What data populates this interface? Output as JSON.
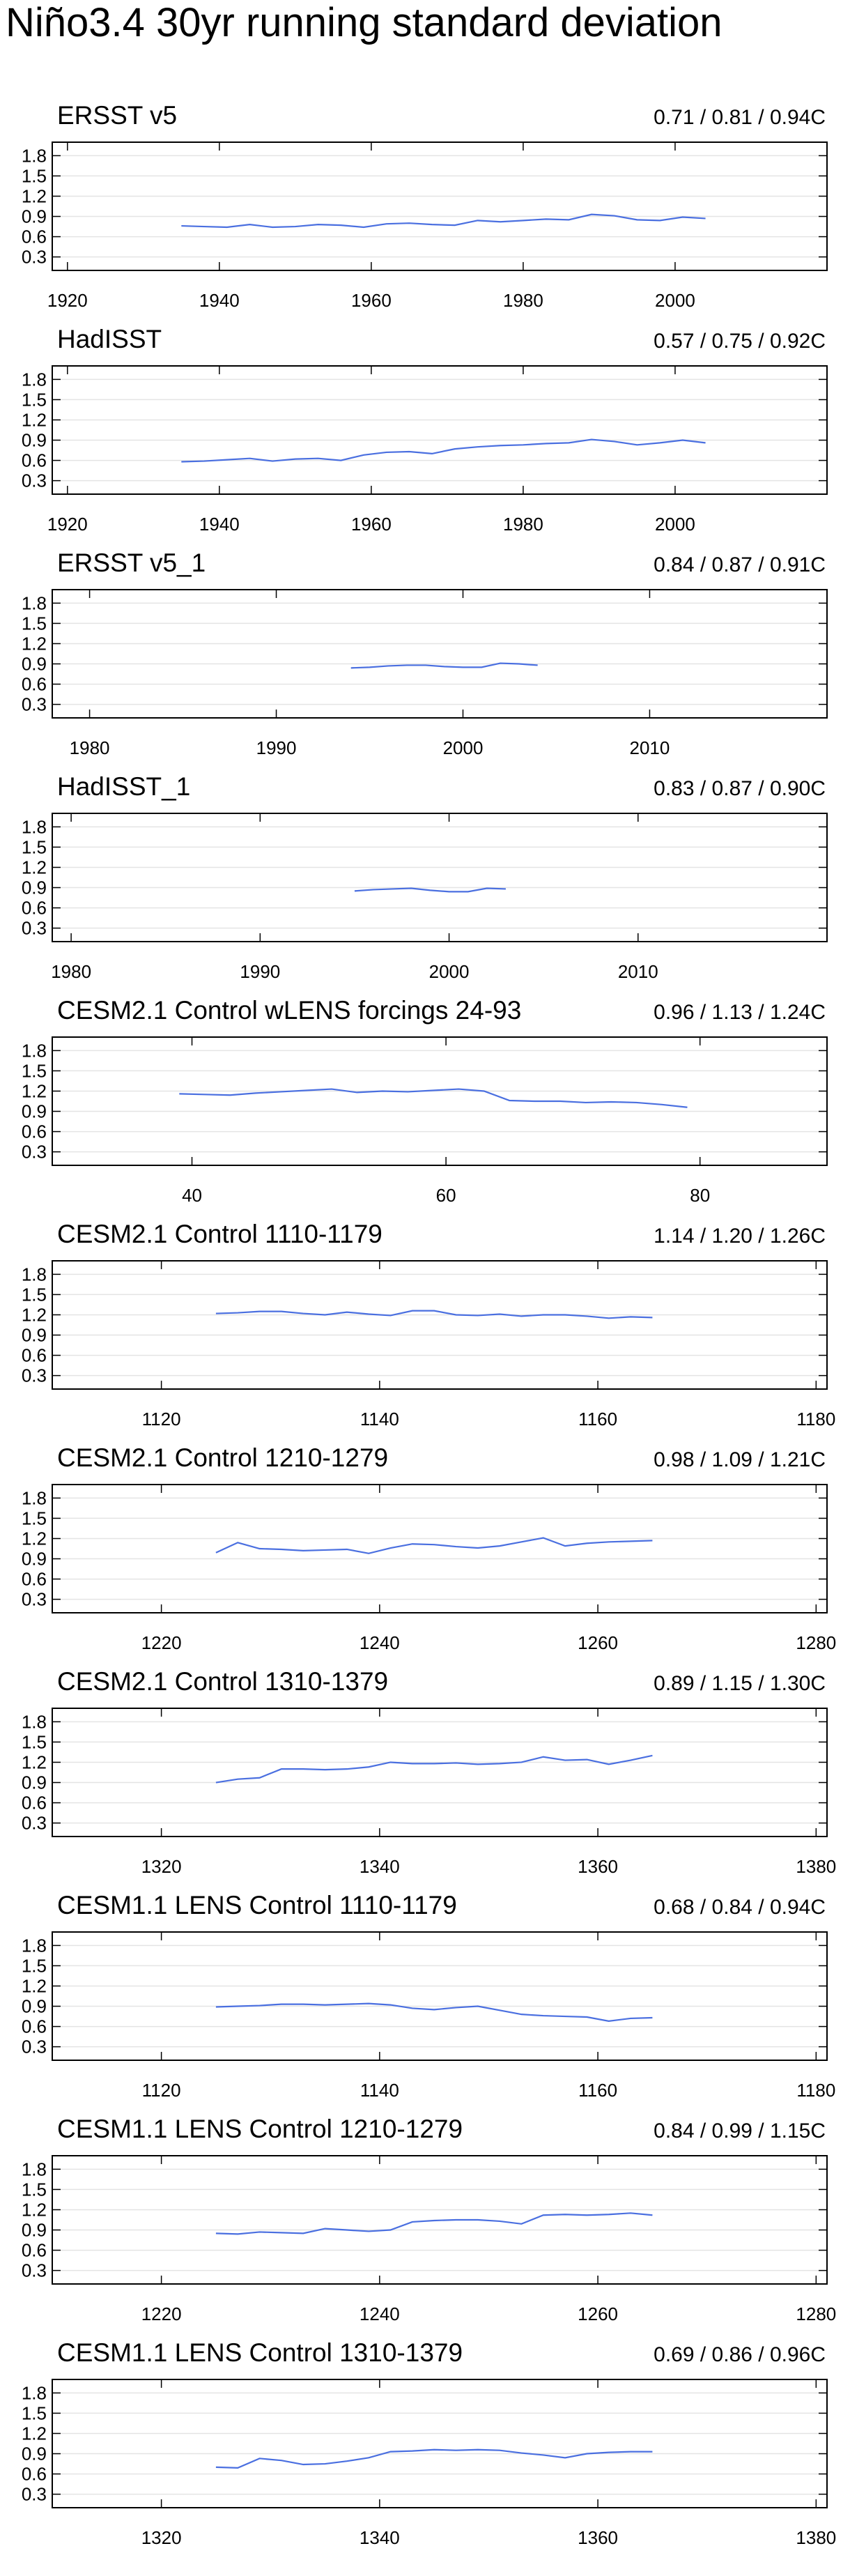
{
  "title": "Niño3.4 30yr running standard deviation",
  "chart_data": [
    {
      "type": "line",
      "title": "ERSST v5",
      "subtitle": "0.71 / 0.81 / 0.94C",
      "color": "#4a6fe0",
      "grid": true,
      "x": [
        1935,
        1938,
        1941,
        1944,
        1947,
        1950,
        1953,
        1956,
        1959,
        1962,
        1965,
        1968,
        1971,
        1974,
        1977,
        1980,
        1983,
        1986,
        1989,
        1992,
        1995,
        1998,
        2001,
        2004
      ],
      "values": [
        0.76,
        0.75,
        0.74,
        0.78,
        0.74,
        0.75,
        0.78,
        0.77,
        0.74,
        0.79,
        0.8,
        0.78,
        0.77,
        0.84,
        0.82,
        0.84,
        0.86,
        0.85,
        0.93,
        0.91,
        0.85,
        0.84,
        0.89,
        0.87
      ],
      "xlim": [
        1918,
        2020
      ],
      "xticks": [
        1920,
        1940,
        1960,
        1980,
        2000
      ],
      "ylim": [
        0.1,
        2.0
      ],
      "yticks": [
        0.3,
        0.6,
        0.9,
        1.2,
        1.5,
        1.8
      ]
    },
    {
      "type": "line",
      "title": "HadISST",
      "subtitle": "0.57 / 0.75 / 0.92C",
      "color": "#4a6fe0",
      "grid": true,
      "x": [
        1935,
        1938,
        1941,
        1944,
        1947,
        1950,
        1953,
        1956,
        1959,
        1962,
        1965,
        1968,
        1971,
        1974,
        1977,
        1980,
        1983,
        1986,
        1989,
        1992,
        1995,
        1998,
        2001,
        2004
      ],
      "values": [
        0.58,
        0.59,
        0.61,
        0.63,
        0.59,
        0.62,
        0.63,
        0.6,
        0.68,
        0.72,
        0.73,
        0.7,
        0.77,
        0.8,
        0.82,
        0.83,
        0.85,
        0.86,
        0.91,
        0.88,
        0.83,
        0.86,
        0.9,
        0.86
      ],
      "xlim": [
        1918,
        2020
      ],
      "xticks": [
        1920,
        1940,
        1960,
        1980,
        2000
      ],
      "ylim": [
        0.1,
        2.0
      ],
      "yticks": [
        0.3,
        0.6,
        0.9,
        1.2,
        1.5,
        1.8
      ]
    },
    {
      "type": "line",
      "title": "ERSST v5_1",
      "subtitle": "0.84 / 0.87 / 0.91C",
      "color": "#4a6fe0",
      "grid": true,
      "x": [
        1994,
        1995,
        1996,
        1997,
        1998,
        1999,
        2000,
        2001,
        2002,
        2003,
        2004
      ],
      "values": [
        0.84,
        0.85,
        0.87,
        0.88,
        0.88,
        0.86,
        0.85,
        0.85,
        0.91,
        0.9,
        0.88
      ],
      "xlim": [
        1978,
        2019.5
      ],
      "xticks": [
        1980,
        1990,
        2000,
        2010
      ],
      "ylim": [
        0.1,
        2.0
      ],
      "yticks": [
        0.3,
        0.6,
        0.9,
        1.2,
        1.5,
        1.8
      ]
    },
    {
      "type": "line",
      "title": "HadISST_1",
      "subtitle": "0.83 / 0.87 / 0.90C",
      "color": "#4a6fe0",
      "grid": true,
      "x": [
        1995,
        1996,
        1997,
        1998,
        1999,
        2000,
        2001,
        2002,
        2003
      ],
      "values": [
        0.85,
        0.87,
        0.88,
        0.89,
        0.86,
        0.84,
        0.84,
        0.89,
        0.88
      ],
      "xlim": [
        1979,
        2020
      ],
      "xticks": [
        1980,
        1990,
        2000,
        2010
      ],
      "ylim": [
        0.1,
        2.0
      ],
      "yticks": [
        0.3,
        0.6,
        0.9,
        1.2,
        1.5,
        1.8
      ]
    },
    {
      "type": "line",
      "title": "CESM2.1 Control wLENS forcings 24-93",
      "subtitle": "0.96 / 1.13 / 1.24C",
      "color": "#4a6fe0",
      "grid": true,
      "x": [
        39,
        41,
        43,
        45,
        47,
        49,
        51,
        53,
        55,
        57,
        59,
        61,
        63,
        65,
        67,
        69,
        71,
        73,
        75,
        77,
        79
      ],
      "values": [
        1.16,
        1.15,
        1.14,
        1.17,
        1.19,
        1.21,
        1.23,
        1.18,
        1.2,
        1.19,
        1.21,
        1.23,
        1.2,
        1.06,
        1.05,
        1.05,
        1.03,
        1.04,
        1.03,
        1.0,
        0.96
      ],
      "xlim": [
        29,
        90
      ],
      "xticks": [
        40,
        60,
        80
      ],
      "ylim": [
        0.1,
        2.0
      ],
      "yticks": [
        0.3,
        0.6,
        0.9,
        1.2,
        1.5,
        1.8
      ]
    },
    {
      "type": "line",
      "title": "CESM2.1 Control 1110-1179",
      "subtitle": "1.14 / 1.20 / 1.26C",
      "color": "#4a6fe0",
      "grid": true,
      "x": [
        1125,
        1127,
        1129,
        1131,
        1133,
        1135,
        1137,
        1139,
        1141,
        1143,
        1145,
        1147,
        1149,
        1151,
        1153,
        1155,
        1157,
        1159,
        1161,
        1163,
        1165
      ],
      "values": [
        1.22,
        1.23,
        1.25,
        1.25,
        1.22,
        1.2,
        1.24,
        1.21,
        1.19,
        1.26,
        1.26,
        1.2,
        1.19,
        1.21,
        1.18,
        1.2,
        1.2,
        1.18,
        1.15,
        1.17,
        1.16
      ],
      "xlim": [
        1110,
        1181
      ],
      "xticks": [
        1120,
        1140,
        1160,
        1180
      ],
      "ylim": [
        0.1,
        2.0
      ],
      "yticks": [
        0.3,
        0.6,
        0.9,
        1.2,
        1.5,
        1.8
      ]
    },
    {
      "type": "line",
      "title": "CESM2.1 Control 1210-1279",
      "subtitle": "0.98 / 1.09 / 1.21C",
      "color": "#4a6fe0",
      "grid": true,
      "x": [
        1225,
        1227,
        1229,
        1231,
        1233,
        1235,
        1237,
        1239,
        1241,
        1243,
        1245,
        1247,
        1249,
        1251,
        1253,
        1255,
        1257,
        1259,
        1261,
        1263,
        1265
      ],
      "values": [
        0.99,
        1.14,
        1.05,
        1.04,
        1.02,
        1.03,
        1.04,
        0.98,
        1.06,
        1.12,
        1.11,
        1.08,
        1.06,
        1.09,
        1.15,
        1.21,
        1.09,
        1.13,
        1.15,
        1.16,
        1.17
      ],
      "xlim": [
        1210,
        1281
      ],
      "xticks": [
        1220,
        1240,
        1260,
        1280
      ],
      "ylim": [
        0.1,
        2.0
      ],
      "yticks": [
        0.3,
        0.6,
        0.9,
        1.2,
        1.5,
        1.8
      ]
    },
    {
      "type": "line",
      "title": "CESM2.1 Control 1310-1379",
      "subtitle": "0.89 / 1.15 / 1.30C",
      "color": "#4a6fe0",
      "grid": true,
      "x": [
        1325,
        1327,
        1329,
        1331,
        1333,
        1335,
        1337,
        1339,
        1341,
        1343,
        1345,
        1347,
        1349,
        1351,
        1353,
        1355,
        1357,
        1359,
        1361,
        1363,
        1365
      ],
      "values": [
        0.9,
        0.95,
        0.97,
        1.1,
        1.1,
        1.09,
        1.1,
        1.13,
        1.2,
        1.18,
        1.18,
        1.19,
        1.17,
        1.18,
        1.2,
        1.28,
        1.23,
        1.24,
        1.17,
        1.23,
        1.3
      ],
      "xlim": [
        1310,
        1381
      ],
      "xticks": [
        1320,
        1340,
        1360,
        1380
      ],
      "ylim": [
        0.1,
        2.0
      ],
      "yticks": [
        0.3,
        0.6,
        0.9,
        1.2,
        1.5,
        1.8
      ]
    },
    {
      "type": "line",
      "title": "CESM1.1 LENS Control 1110-1179",
      "subtitle": "0.68 / 0.84 / 0.94C",
      "color": "#4a6fe0",
      "grid": true,
      "x": [
        1125,
        1127,
        1129,
        1131,
        1133,
        1135,
        1137,
        1139,
        1141,
        1143,
        1145,
        1147,
        1149,
        1151,
        1153,
        1155,
        1157,
        1159,
        1161,
        1163,
        1165
      ],
      "values": [
        0.89,
        0.9,
        0.91,
        0.93,
        0.93,
        0.92,
        0.93,
        0.94,
        0.92,
        0.87,
        0.85,
        0.88,
        0.9,
        0.84,
        0.78,
        0.76,
        0.75,
        0.74,
        0.68,
        0.72,
        0.73
      ],
      "xlim": [
        1110,
        1181
      ],
      "xticks": [
        1120,
        1140,
        1160,
        1180
      ],
      "ylim": [
        0.1,
        2.0
      ],
      "yticks": [
        0.3,
        0.6,
        0.9,
        1.2,
        1.5,
        1.8
      ]
    },
    {
      "type": "line",
      "title": "CESM1.1 LENS Control 1210-1279",
      "subtitle": "0.84 / 0.99 / 1.15C",
      "color": "#4a6fe0",
      "grid": true,
      "x": [
        1225,
        1227,
        1229,
        1231,
        1233,
        1235,
        1237,
        1239,
        1241,
        1243,
        1245,
        1247,
        1249,
        1251,
        1253,
        1255,
        1257,
        1259,
        1261,
        1263,
        1265
      ],
      "values": [
        0.85,
        0.84,
        0.87,
        0.86,
        0.85,
        0.92,
        0.9,
        0.88,
        0.9,
        1.02,
        1.04,
        1.05,
        1.05,
        1.03,
        0.99,
        1.12,
        1.13,
        1.12,
        1.13,
        1.15,
        1.12
      ],
      "xlim": [
        1210,
        1281
      ],
      "xticks": [
        1220,
        1240,
        1260,
        1280
      ],
      "ylim": [
        0.1,
        2.0
      ],
      "yticks": [
        0.3,
        0.6,
        0.9,
        1.2,
        1.5,
        1.8
      ]
    },
    {
      "type": "line",
      "title": "CESM1.1 LENS Control 1310-1379",
      "subtitle": "0.69 / 0.86 / 0.96C",
      "color": "#4a6fe0",
      "grid": true,
      "x": [
        1325,
        1327,
        1329,
        1331,
        1333,
        1335,
        1337,
        1339,
        1341,
        1343,
        1345,
        1347,
        1349,
        1351,
        1353,
        1355,
        1357,
        1359,
        1361,
        1363,
        1365
      ],
      "values": [
        0.7,
        0.69,
        0.83,
        0.8,
        0.74,
        0.75,
        0.79,
        0.84,
        0.93,
        0.94,
        0.96,
        0.95,
        0.96,
        0.95,
        0.91,
        0.88,
        0.84,
        0.9,
        0.92,
        0.93,
        0.93
      ],
      "xlim": [
        1310,
        1381
      ],
      "xticks": [
        1320,
        1340,
        1360,
        1380
      ],
      "ylim": [
        0.1,
        2.0
      ],
      "yticks": [
        0.3,
        0.6,
        0.9,
        1.2,
        1.5,
        1.8
      ]
    }
  ]
}
